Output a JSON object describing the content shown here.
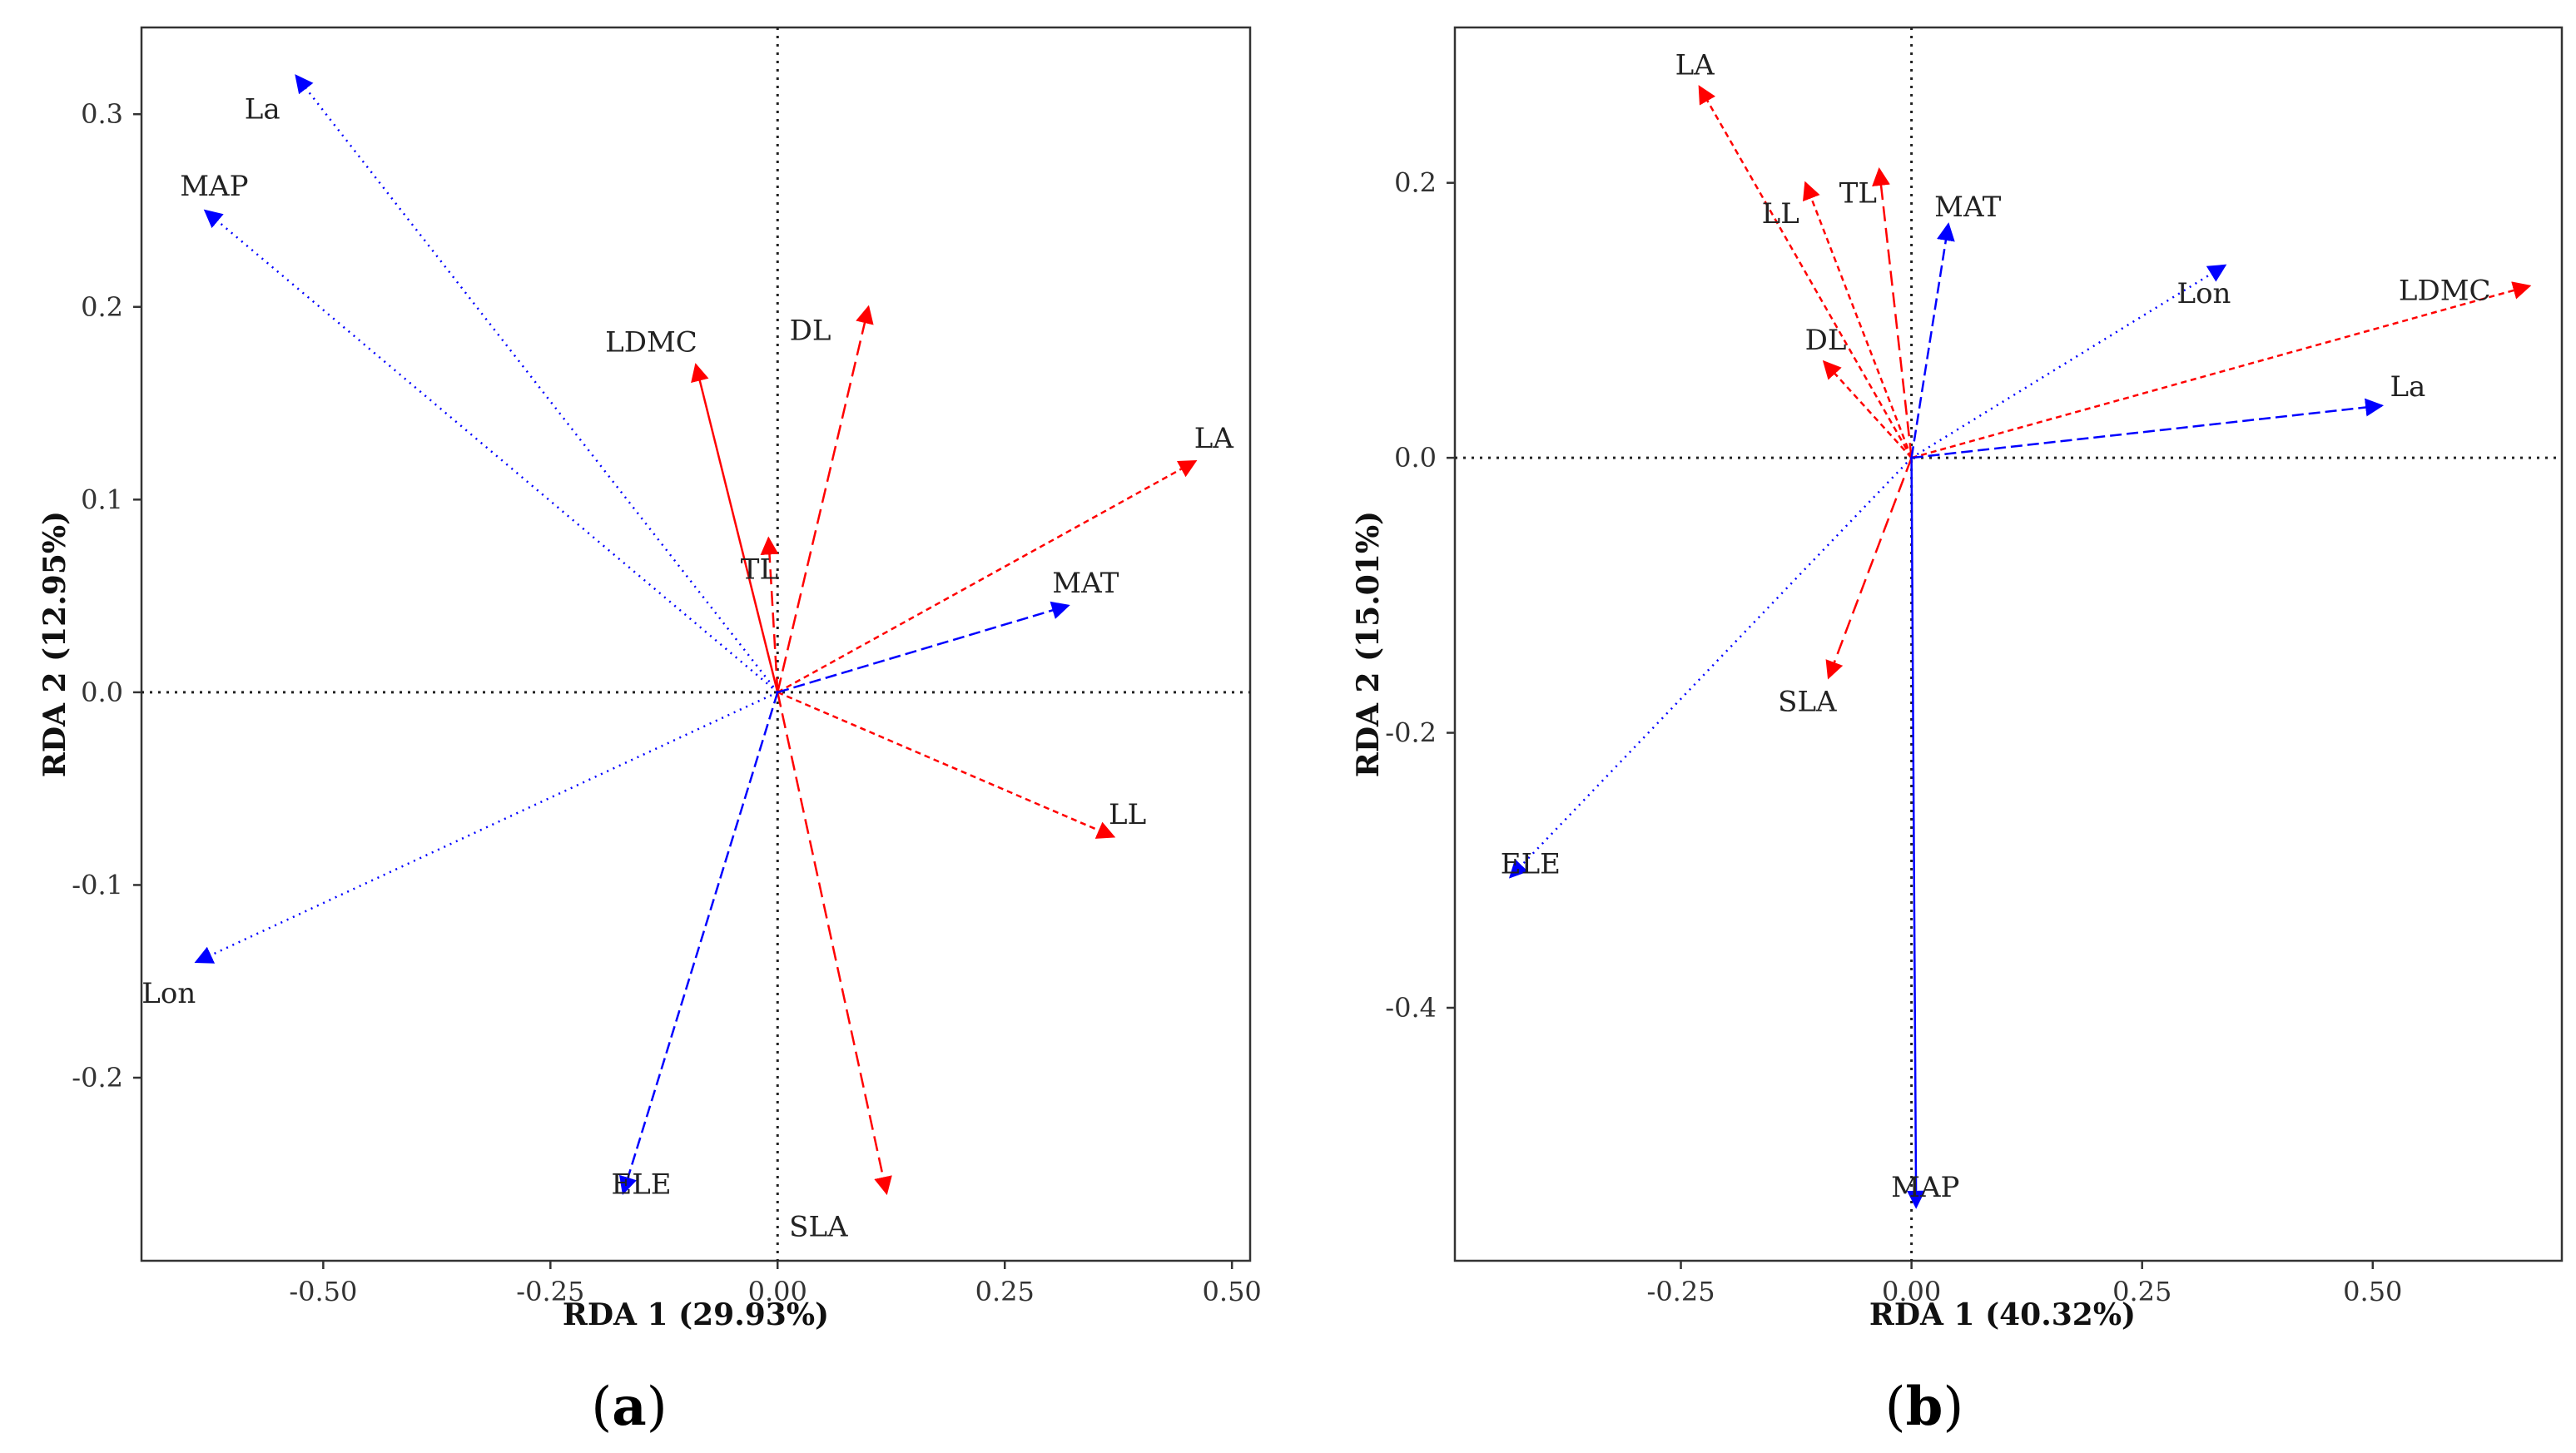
{
  "colors": {
    "trait": "#ff0000",
    "env": "#0000ff"
  },
  "chart_data": [
    {
      "type": "biplot",
      "panel_label": "a",
      "xlabel": "RDA 1 (29.93%)",
      "ylabel": "RDA 2 (12.95%)",
      "xlim": [
        -0.7,
        0.52
      ],
      "ylim": [
        -0.295,
        0.345
      ],
      "xticks": [
        -0.5,
        -0.25,
        0.0,
        0.25,
        0.5
      ],
      "xtick_labels": [
        "-0.50",
        "-0.25",
        "0.00",
        "0.25",
        "0.50"
      ],
      "yticks": [
        -0.2,
        -0.1,
        0.0,
        0.1,
        0.2,
        0.3
      ],
      "ytick_labels": [
        "-0.2",
        "-0.1",
        "0.0",
        "0.1",
        "0.2",
        "0.3"
      ],
      "reference_lines": {
        "x": 0,
        "y": 0,
        "style": "dotted"
      },
      "vectors": [
        {
          "name": "LA",
          "group": "trait",
          "dash": "short",
          "x": 0.46,
          "y": 0.12,
          "label_x": 0.48,
          "label_y": 0.132
        },
        {
          "name": "DL",
          "group": "trait",
          "dash": "long",
          "x": 0.1,
          "y": 0.2,
          "label_x": 0.036,
          "label_y": 0.188
        },
        {
          "name": "LDMC",
          "group": "trait",
          "dash": "solid",
          "x": -0.09,
          "y": 0.17,
          "label_x": -0.139,
          "label_y": 0.182
        },
        {
          "name": "TL",
          "group": "trait",
          "dash": "long",
          "x": -0.01,
          "y": 0.08,
          "label_x": -0.02,
          "label_y": 0.064
        },
        {
          "name": "LL",
          "group": "trait",
          "dash": "short",
          "x": 0.37,
          "y": -0.075,
          "label_x": 0.385,
          "label_y": -0.063
        },
        {
          "name": "SLA",
          "group": "trait",
          "dash": "long",
          "x": 0.12,
          "y": -0.26,
          "label_x": 0.045,
          "label_y": -0.277
        },
        {
          "name": "La",
          "group": "env",
          "dash": "dot",
          "x": -0.53,
          "y": 0.32,
          "label_x": -0.567,
          "label_y": 0.303
        },
        {
          "name": "MAP",
          "group": "env",
          "dash": "dot",
          "x": -0.63,
          "y": 0.25,
          "label_x": -0.62,
          "label_y": 0.263
        },
        {
          "name": "MAT",
          "group": "env",
          "dash": "dash",
          "x": 0.32,
          "y": 0.045,
          "label_x": 0.339,
          "label_y": 0.057
        },
        {
          "name": "Lon",
          "group": "env",
          "dash": "dot",
          "x": -0.64,
          "y": -0.14,
          "label_x": -0.67,
          "label_y": -0.156
        },
        {
          "name": "ELE",
          "group": "env",
          "dash": "dash",
          "x": -0.17,
          "y": -0.26,
          "label_x": -0.15,
          "label_y": -0.255
        }
      ]
    },
    {
      "type": "biplot",
      "panel_label": "b",
      "xlabel": "RDA 1 (40.32%)",
      "ylabel": "RDA 2 (15.01%)",
      "xlim": [
        -0.495,
        0.705
      ],
      "ylim": [
        -0.584,
        0.313
      ],
      "xticks": [
        -0.25,
        0.0,
        0.25,
        0.5
      ],
      "xtick_labels": [
        "-0.25",
        "0.00",
        "0.25",
        "0.50"
      ],
      "yticks": [
        -0.4,
        -0.2,
        0.0,
        0.2
      ],
      "ytick_labels": [
        "-0.4",
        "-0.2",
        "0.0",
        "0.2"
      ],
      "reference_lines": {
        "x": 0,
        "y": 0,
        "style": "dotted"
      },
      "vectors": [
        {
          "name": "LA",
          "group": "trait",
          "dash": "short",
          "x": -0.23,
          "y": 0.27,
          "label_x": -0.235,
          "label_y": 0.286
        },
        {
          "name": "LL",
          "group": "trait",
          "dash": "short",
          "x": -0.115,
          "y": 0.2,
          "label_x": -0.142,
          "label_y": 0.178
        },
        {
          "name": "TL",
          "group": "trait",
          "dash": "long",
          "x": -0.035,
          "y": 0.21,
          "label_x": -0.058,
          "label_y": 0.193
        },
        {
          "name": "DL",
          "group": "trait",
          "dash": "short",
          "x": -0.095,
          "y": 0.07,
          "label_x": -0.093,
          "label_y": 0.086
        },
        {
          "name": "LDMC",
          "group": "trait",
          "dash": "short",
          "x": 0.67,
          "y": 0.125,
          "label_x": 0.578,
          "label_y": 0.122
        },
        {
          "name": "SLA",
          "group": "trait",
          "dash": "long",
          "x": -0.09,
          "y": -0.16,
          "label_x": -0.113,
          "label_y": -0.177
        },
        {
          "name": "MAT",
          "group": "env",
          "dash": "dash",
          "x": 0.04,
          "y": 0.17,
          "label_x": 0.061,
          "label_y": 0.183
        },
        {
          "name": "Lon",
          "group": "env",
          "dash": "dot",
          "x": 0.34,
          "y": 0.14,
          "label_x": 0.317,
          "label_y": 0.12
        },
        {
          "name": "La",
          "group": "env",
          "dash": "dash",
          "x": 0.51,
          "y": 0.038,
          "label_x": 0.538,
          "label_y": 0.052
        },
        {
          "name": "ELE",
          "group": "env",
          "dash": "dot",
          "x": -0.435,
          "y": -0.305,
          "label_x": -0.413,
          "label_y": -0.295
        },
        {
          "name": "MAP",
          "group": "env",
          "dash": "solid",
          "x": 0.005,
          "y": -0.545,
          "label_x": 0.015,
          "label_y": -0.53
        }
      ]
    }
  ]
}
